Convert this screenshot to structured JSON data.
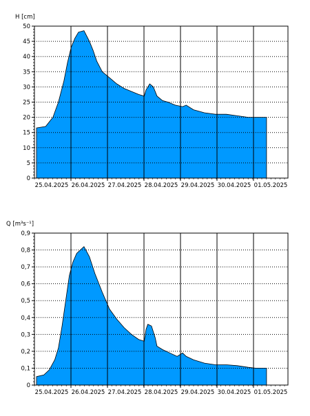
{
  "chart_data": [
    {
      "type": "area",
      "ylabel": "H [cm]",
      "ylim": [
        0,
        50
      ],
      "yticks": [
        0,
        5,
        10,
        15,
        20,
        25,
        30,
        35,
        40,
        45,
        50
      ],
      "xlim": [
        0,
        7
      ],
      "date_labels": [
        "25.04.2025",
        "26.04.2025",
        "27.04.2025",
        "28.04.2025",
        "29.04.2025",
        "30.04.2025",
        "01.05.2025"
      ],
      "grid": true,
      "fill_color": "#0099ff",
      "x": [
        0.0,
        0.25,
        0.35,
        0.45,
        0.6,
        0.75,
        0.85,
        0.95,
        1.05,
        1.15,
        1.3,
        1.45,
        1.55,
        1.65,
        1.8,
        2.0,
        2.2,
        2.4,
        2.6,
        2.8,
        2.95,
        3.0,
        3.1,
        3.2,
        3.3,
        3.45,
        3.6,
        3.8,
        4.0,
        4.1,
        4.3,
        4.6,
        4.9,
        5.2,
        5.5,
        5.8,
        6.0,
        6.3
      ],
      "values": [
        16.5,
        17,
        18.5,
        20,
        25,
        32,
        38,
        43,
        46,
        48,
        48.5,
        45,
        42,
        38.5,
        35,
        33,
        31,
        29.5,
        28.5,
        27.5,
        27,
        29,
        31,
        30,
        27,
        25.5,
        25,
        24,
        23.5,
        24,
        22.5,
        21.5,
        21,
        21,
        20.5,
        20,
        20,
        20
      ]
    },
    {
      "type": "area",
      "ylabel": "Q [m³s⁻¹]",
      "ylim": [
        0,
        0.9
      ],
      "yticks": [
        0,
        0.1,
        0.2,
        0.3,
        0.4,
        0.5,
        0.6,
        0.7,
        0.8,
        0.9
      ],
      "ytick_labels": [
        "0",
        "0,1",
        "0,2",
        "0,3",
        "0,4",
        "0,5",
        "0,6",
        "0,7",
        "0,8",
        "0,9"
      ],
      "xlim": [
        0,
        7
      ],
      "date_labels": [
        "25.04.2025",
        "26.04.2025",
        "27.04.2025",
        "28.04.2025",
        "29.04.2025",
        "30.04.2025",
        "01.05.2025"
      ],
      "grid": true,
      "fill_color": "#0099ff",
      "x": [
        0.0,
        0.2,
        0.35,
        0.5,
        0.6,
        0.7,
        0.8,
        0.9,
        1.0,
        1.1,
        1.2,
        1.3,
        1.45,
        1.6,
        1.8,
        2.0,
        2.2,
        2.4,
        2.6,
        2.8,
        2.95,
        3.0,
        3.05,
        3.15,
        3.25,
        3.3,
        3.45,
        3.65,
        3.85,
        4.0,
        4.1,
        4.3,
        4.6,
        4.9,
        5.2,
        5.5,
        5.8,
        6.0,
        6.3
      ],
      "values": [
        0.05,
        0.06,
        0.09,
        0.15,
        0.22,
        0.35,
        0.5,
        0.65,
        0.73,
        0.78,
        0.8,
        0.82,
        0.76,
        0.66,
        0.55,
        0.45,
        0.39,
        0.34,
        0.3,
        0.27,
        0.26,
        0.33,
        0.36,
        0.35,
        0.28,
        0.23,
        0.21,
        0.19,
        0.17,
        0.19,
        0.17,
        0.15,
        0.13,
        0.12,
        0.12,
        0.115,
        0.105,
        0.1,
        0.1
      ]
    }
  ]
}
